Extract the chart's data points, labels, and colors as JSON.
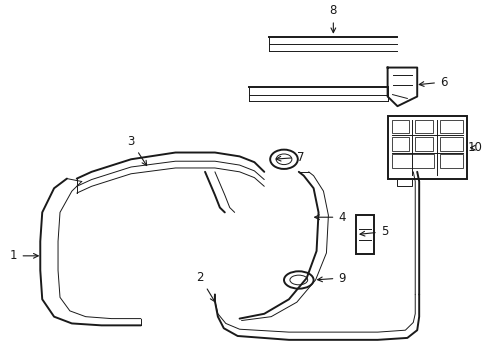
{
  "bg_color": "#ffffff",
  "line_color": "#1a1a1a",
  "lw": 1.4,
  "lw_thin": 0.7,
  "lw_med": 1.0,
  "fontsize": 8.5,
  "arrow_color": "#1a1a1a"
}
